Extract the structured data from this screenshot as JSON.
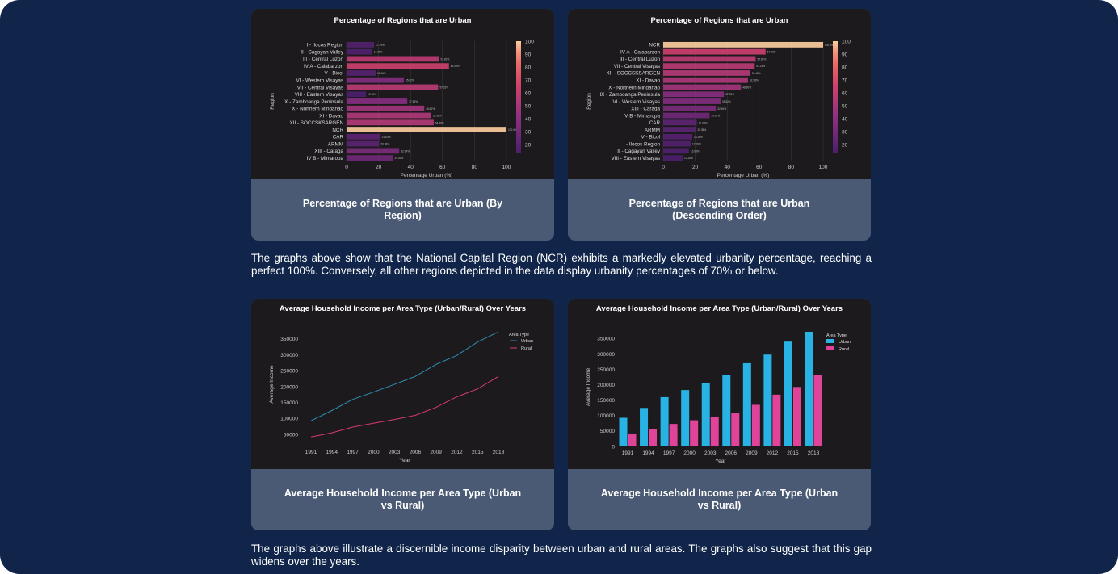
{
  "cards": [
    {
      "caption": "Percentage of Regions that are Urban (By Region)",
      "chart_data": {
        "type": "bar",
        "orientation": "horizontal",
        "title": "Percentage of Regions that are Urban",
        "xlabel": "Percentage Urban (%)",
        "ylabel": "Region",
        "xlim": [
          0,
          100
        ],
        "xticks": [
          0,
          20,
          40,
          60,
          80,
          100
        ],
        "colorbar_ticks": [
          100,
          90,
          80,
          70,
          60,
          50,
          40,
          30,
          20
        ],
        "colorbar_range": [
          14,
          100
        ],
        "categories": [
          "I - Ilocos Region",
          "II - Cagayan Valley",
          "III - Central Luzon",
          "IV A - Calabarzon",
          "V - Bicol",
          "VI - Western Visayas",
          "VII - Central Visayas",
          "VIII - Eastern Visayas",
          "IX - Zamboanga Peninsula",
          "X - Northern Mindanao",
          "XI - Davao",
          "XII - SOCCSKSARGEN",
          "NCR",
          "CAR",
          "ARMM",
          "XIII - Caraga",
          "IV B - Mimaropa"
        ],
        "values": [
          17.19,
          16.08,
          57.82,
          64.03,
          18.16,
          35.82,
          57.23,
          12.15,
          37.98,
          48.6,
          52.98,
          54.48,
          100.0,
          21.03,
          20.38,
          32.94,
          29.02
        ],
        "value_labels": [
          "17.19%",
          "16.08%",
          "57.82%",
          "64.03%",
          "18.16%",
          "35.82%",
          "57.23%",
          "12.15%",
          "37.98%",
          "48.60%",
          "52.98%",
          "54.48%",
          "100.0%",
          "21.03%",
          "20.38%",
          "32.94%",
          "29.02%"
        ]
      }
    },
    {
      "caption": "Percentage of Regions that are Urban (Descending Order)",
      "chart_data": {
        "type": "bar",
        "orientation": "horizontal",
        "title": "Percentage of Regions that are Urban",
        "xlabel": "Percentage Urban (%)",
        "ylabel": "Region",
        "xlim": [
          0,
          100
        ],
        "xticks": [
          0,
          20,
          40,
          60,
          80,
          100
        ],
        "colorbar_ticks": [
          100,
          90,
          80,
          70,
          60,
          50,
          40,
          30,
          20
        ],
        "colorbar_range": [
          14,
          100
        ],
        "categories": [
          "NCR",
          "IV A - Calabarzon",
          "III - Central Luzon",
          "VII - Central Visayas",
          "XII - SOCCSKSARGEN",
          "XI - Davao",
          "X - Northern Mindanao",
          "IX - Zamboanga Peninsula",
          "VI - Western Visayas",
          "XIII - Caraga",
          "IV B - Mimaropa",
          "CAR",
          "ARMM",
          "V - Bicol",
          "I - Ilocos Region",
          "II - Cagayan Valley",
          "VIII - Eastern Visayas"
        ],
        "values": [
          100.0,
          64.03,
          57.82,
          57.23,
          54.48,
          52.98,
          48.6,
          37.98,
          35.82,
          32.94,
          29.02,
          21.03,
          20.38,
          18.16,
          17.19,
          16.08,
          12.15
        ],
        "value_labels": [
          "100.0%",
          "64.03%",
          "57.82%",
          "57.23%",
          "54.48%",
          "52.98%",
          "48.60%",
          "37.98%",
          "35.82%",
          "32.94%",
          "29.02%",
          "21.03%",
          "20.38%",
          "18.16%",
          "17.19%",
          "16.08%",
          "12.15%"
        ]
      }
    },
    {
      "caption": "Average Household Income per Area Type (Urban vs Rural)",
      "chart_data": {
        "type": "line",
        "title": "Average Household Income per Area Type (Urban/Rural) Over Years",
        "xlabel": "Year",
        "ylabel": "Average Income",
        "x": [
          "1991",
          "1994",
          "1997",
          "2000",
          "2003",
          "2006",
          "2009",
          "2012",
          "2015",
          "2018"
        ],
        "ylim": [
          30000,
          385000
        ],
        "yticks": [
          50000,
          100000,
          150000,
          200000,
          250000,
          300000,
          350000
        ],
        "legend_title": "Area Type",
        "legend_position": "top-right",
        "series": [
          {
            "name": "Urban",
            "color": "#2e8fb5",
            "values": [
              93000,
              125000,
              160000,
              183000,
              207000,
              232000,
              270000,
              298000,
              340000,
              372000
            ]
          },
          {
            "name": "Rural",
            "color": "#d63a7a",
            "values": [
              42000,
              55000,
              73000,
              85000,
              97000,
              110000,
              135000,
              168000,
              193000,
              232000
            ]
          }
        ]
      }
    },
    {
      "caption": "Average Household Income per Area Type (Urban vs Rural)",
      "chart_data": {
        "type": "bar",
        "title": "Average Household Income per Area Type (Urban/Rural) Over Years",
        "xlabel": "Year",
        "ylabel": "Average Income",
        "categories": [
          "1991",
          "1994",
          "1997",
          "2000",
          "2003",
          "2006",
          "2009",
          "2012",
          "2015",
          "2018"
        ],
        "ylim": [
          0,
          385000
        ],
        "yticks": [
          0,
          50000,
          100000,
          150000,
          200000,
          250000,
          300000,
          350000
        ],
        "legend_title": "Area Type",
        "legend_position": "top-right",
        "series": [
          {
            "name": "Urban",
            "color": "#29b3e5",
            "values": [
              93000,
              125000,
              160000,
              183000,
              207000,
              232000,
              270000,
              298000,
              340000,
              372000
            ]
          },
          {
            "name": "Rural",
            "color": "#e0449a",
            "values": [
              42000,
              55000,
              73000,
              85000,
              97000,
              110000,
              135000,
              168000,
              193000,
              232000
            ]
          }
        ]
      }
    }
  ],
  "paragraphs": [
    "The graphs above show that the National Capital Region (NCR) exhibits a markedly elevated urbanity percentage, reaching a perfect 100%. Conversely, all other regions depicted in the data display urbanity percentages of 70% or below.",
    "The graphs above illustrate a discernible income disparity between urban and rural areas. The graphs also suggest that this gap widens over the years."
  ]
}
